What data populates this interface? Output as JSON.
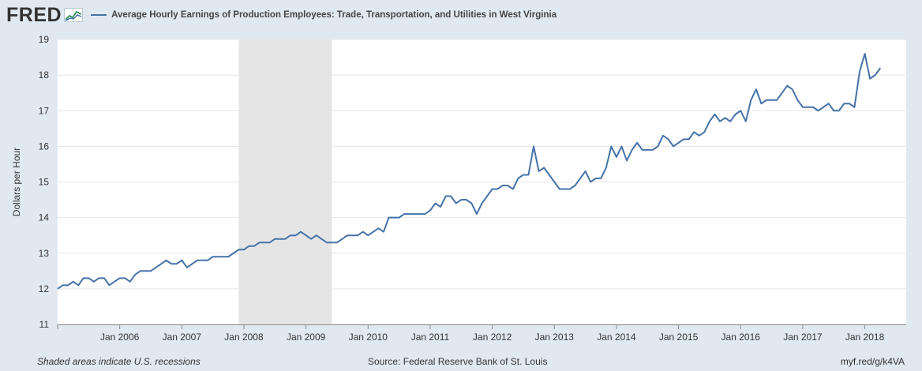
{
  "header": {
    "logo": "FRED",
    "legend_label": "Average Hourly Earnings of Production Employees: Trade, Transportation, and Utilities in West Virginia"
  },
  "footer": {
    "note": "Shaded areas indicate U.S. recessions",
    "source": "Source: Federal Reserve Bank of St. Louis",
    "link": "myf.red/g/k4VA"
  },
  "colors": {
    "background": "#e1e9f0",
    "plot_background": "#ffffff",
    "series_line": "#4572a7",
    "recession_shade": "#e5e5e5"
  },
  "chart_data": {
    "type": "line",
    "title": "",
    "ylabel": "Dollars per Hour",
    "xlabel": "",
    "ylim": [
      11,
      19
    ],
    "yticks": [
      11,
      12,
      13,
      14,
      15,
      16,
      17,
      18,
      19
    ],
    "xlim": [
      "2005-01",
      "2018-09"
    ],
    "xticks": [
      "Jan 2006",
      "Jan 2007",
      "Jan 2008",
      "Jan 2009",
      "Jan 2010",
      "Jan 2011",
      "Jan 2012",
      "Jan 2013",
      "Jan 2014",
      "Jan 2015",
      "Jan 2016",
      "Jan 2017",
      "Jan 2018"
    ],
    "grid": true,
    "legend_position": "top",
    "recessions": [
      {
        "start": "2007-12",
        "end": "2009-06"
      }
    ],
    "series": [
      {
        "name": "Average Hourly Earnings of Production Employees: Trade, Transportation, and Utilities in West Virginia",
        "start": "2005-01",
        "frequency": "monthly",
        "values": [
          12.0,
          12.1,
          12.1,
          12.2,
          12.1,
          12.3,
          12.3,
          12.2,
          12.3,
          12.3,
          12.1,
          12.2,
          12.3,
          12.3,
          12.2,
          12.4,
          12.5,
          12.5,
          12.5,
          12.6,
          12.7,
          12.8,
          12.7,
          12.7,
          12.8,
          12.6,
          12.7,
          12.8,
          12.8,
          12.8,
          12.9,
          12.9,
          12.9,
          12.9,
          13.0,
          13.1,
          13.1,
          13.2,
          13.2,
          13.3,
          13.3,
          13.3,
          13.4,
          13.4,
          13.4,
          13.5,
          13.5,
          13.6,
          13.5,
          13.4,
          13.5,
          13.4,
          13.3,
          13.3,
          13.3,
          13.4,
          13.5,
          13.5,
          13.5,
          13.6,
          13.5,
          13.6,
          13.7,
          13.6,
          14.0,
          14.0,
          14.0,
          14.1,
          14.1,
          14.1,
          14.1,
          14.1,
          14.2,
          14.4,
          14.3,
          14.6,
          14.6,
          14.4,
          14.5,
          14.5,
          14.4,
          14.1,
          14.4,
          14.6,
          14.8,
          14.8,
          14.9,
          14.9,
          14.8,
          15.1,
          15.2,
          15.2,
          16.0,
          15.3,
          15.4,
          15.2,
          15.0,
          14.8,
          14.8,
          14.8,
          14.9,
          15.1,
          15.3,
          15.0,
          15.1,
          15.1,
          15.4,
          16.0,
          15.7,
          16.0,
          15.6,
          15.9,
          16.1,
          15.9,
          15.9,
          15.9,
          16.0,
          16.3,
          16.2,
          16.0,
          16.1,
          16.2,
          16.2,
          16.4,
          16.3,
          16.4,
          16.7,
          16.9,
          16.7,
          16.8,
          16.7,
          16.9,
          17.0,
          16.7,
          17.3,
          17.6,
          17.2,
          17.3,
          17.3,
          17.3,
          17.5,
          17.7,
          17.6,
          17.3,
          17.1,
          17.1,
          17.1,
          17.0,
          17.1,
          17.2,
          17.0,
          17.0,
          17.2,
          17.2,
          17.1,
          18.1,
          18.6,
          17.9,
          18.0,
          18.2
        ]
      }
    ]
  }
}
